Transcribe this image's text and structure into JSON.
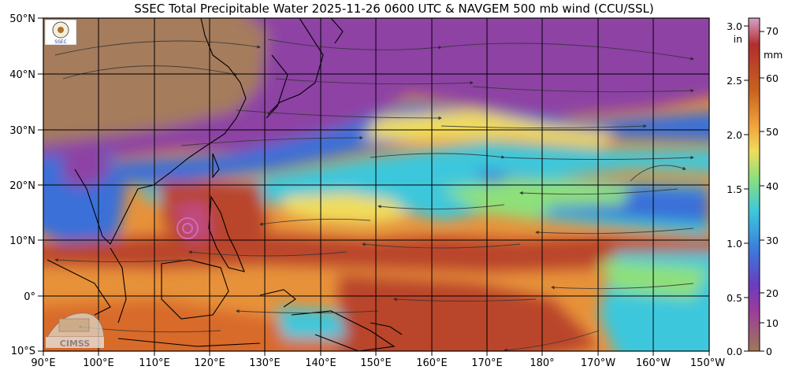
{
  "title": "SSEC Total Precipitable Water  2025-11-26 0600 UTC & NAVGEM 500 mb wind (CCU/SSL)",
  "lat_labels": [
    "50°N",
    "40°N",
    "30°N",
    "20°N",
    "10°N",
    "0°",
    "10°S"
  ],
  "lon_labels": [
    "90°E",
    "100°E",
    "110°E",
    "120°E",
    "130°E",
    "140°E",
    "150°E",
    "160°E",
    "170°E",
    "180°",
    "170°W",
    "160°W",
    "150°W"
  ],
  "colorbar": {
    "inch_labels": [
      "3.0",
      "2.5",
      "2.0",
      "1.5",
      "1.0",
      "0.5",
      "0.0"
    ],
    "inch_unit": "in",
    "mm_labels": [
      "70",
      "60",
      "50",
      "40",
      "30",
      "20",
      "10",
      "0"
    ],
    "mm_unit": "mm",
    "gradient": [
      "#d6a0c8",
      "#b22d2d",
      "#c8641e",
      "#f0a03c",
      "#f0dc5a",
      "#8ce07c",
      "#3cc8dc",
      "#3c78dc",
      "#6a3cbe",
      "#9b3c9b",
      "#a07856"
    ]
  },
  "logos": {
    "top": "SSEC",
    "bottom": "CIMSS"
  },
  "field_colors": {
    "dry_brown": "#a57c5b",
    "purple": "#8d42a4",
    "blue": "#3a6fd8",
    "cyan": "#3cc7dc",
    "green": "#8ee07a",
    "yellow": "#f0dd5c",
    "orange": "#e7923a",
    "red": "#b9442a"
  }
}
